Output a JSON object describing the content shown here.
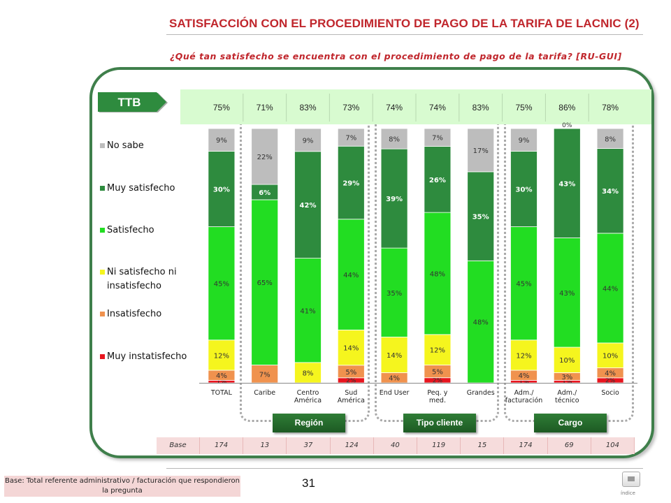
{
  "page": {
    "title": "SATISFACCIÓN CON EL PROCEDIMIENTO DE PAGO DE LA TARIFA DE LACNIC (2)",
    "subtitle": "¿Qué tan satisfecho se encuentra con el procedimiento de pago de la tarifa? [RU-GUI]",
    "ttb_label": "TTB",
    "page_number": "31",
    "footer_note": "Base: Total referente administrativo / facturación que respondieron la pregunta",
    "index_label": "índice",
    "groups": [
      "Región",
      "Tipo cliente",
      "Cargo"
    ],
    "base_label": "Base",
    "base_values": [
      "174",
      "13",
      "37",
      "124",
      "40",
      "119",
      "15",
      "174",
      "69",
      "104"
    ],
    "ttb_values": [
      "75%",
      "71%",
      "83%",
      "73%",
      "74%",
      "74%",
      "83%",
      "75%",
      "86%",
      "78%"
    ],
    "colors": {
      "no_sabe": "#bdbdbd",
      "muy_satisfecho": "#2e8b3e",
      "satisfecho": "#22dd22",
      "ni": "#f5f51e",
      "insatisfecho": "#f0924e",
      "muy_insatisfecho": "#e8141e",
      "brand": "#c0262c",
      "frame": "#3f7f4b"
    }
  },
  "chart_data": {
    "type": "bar",
    "stacked": true,
    "normalized": true,
    "categories": [
      "TOTAL",
      "Caribe",
      "Centro\nAmérica",
      "Sud\nAmérica",
      "End User",
      "Peq. y\nmed.",
      "Grandes",
      "Adm./\nfacturación",
      "Adm./\ntécnico",
      "Socio"
    ],
    "legend_position": "left",
    "series": [
      {
        "name": "Muy instatisfecho",
        "color": "#e8141e",
        "values": [
          1,
          0,
          0,
          2,
          0,
          2,
          0,
          1,
          1,
          2
        ],
        "labels": [
          "1%",
          "",
          "",
          "2%",
          "",
          "2%",
          "",
          "1%",
          "1%",
          "2%"
        ]
      },
      {
        "name": "Insatisfecho",
        "color": "#f0924e",
        "values": [
          4,
          7,
          0,
          5,
          4,
          5,
          0,
          4,
          3,
          4
        ],
        "labels": [
          "4%",
          "7%",
          "",
          "5%",
          "4%",
          "5%",
          "",
          "4%",
          "3%",
          "4%"
        ]
      },
      {
        "name": "Ni satisfecho ni insatisfecho",
        "color": "#f5f51e",
        "values": [
          12,
          0,
          8,
          14,
          14,
          12,
          0,
          12,
          10,
          10
        ],
        "labels": [
          "12%",
          "",
          "8%",
          "14%",
          "14%",
          "12%",
          "",
          "12%",
          "10%",
          "10%"
        ]
      },
      {
        "name": "Satisfecho",
        "color": "#22dd22",
        "values": [
          45,
          65,
          41,
          44,
          35,
          48,
          48,
          45,
          43,
          44
        ],
        "labels": [
          "45%",
          "65%",
          "41%",
          "44%",
          "35%",
          "48%",
          "48%",
          "45%",
          "43%",
          "44%"
        ]
      },
      {
        "name": "Muy satisfecho",
        "color": "#2e8b3e",
        "values": [
          30,
          6,
          42,
          29,
          39,
          26,
          35,
          30,
          43,
          34
        ],
        "labels": [
          "30%",
          "6%",
          "42%",
          "29%",
          "39%",
          "26%",
          "35%",
          "30%",
          "43%",
          "34%"
        ]
      },
      {
        "name": "No sabe",
        "color": "#bdbdbd",
        "values": [
          9,
          22,
          9,
          7,
          8,
          7,
          17,
          9,
          0,
          8
        ],
        "labels": [
          "9%",
          "22%",
          "9%",
          "7%",
          "8%",
          "7%",
          "17%",
          "9%",
          "0%",
          "8%"
        ]
      }
    ],
    "legend_order": [
      "No sabe",
      "Muy satisfecho",
      "Satisfecho",
      "Ni satisfecho ni insatisfecho",
      "Insatisfecho",
      "Muy instatisfecho"
    ]
  }
}
